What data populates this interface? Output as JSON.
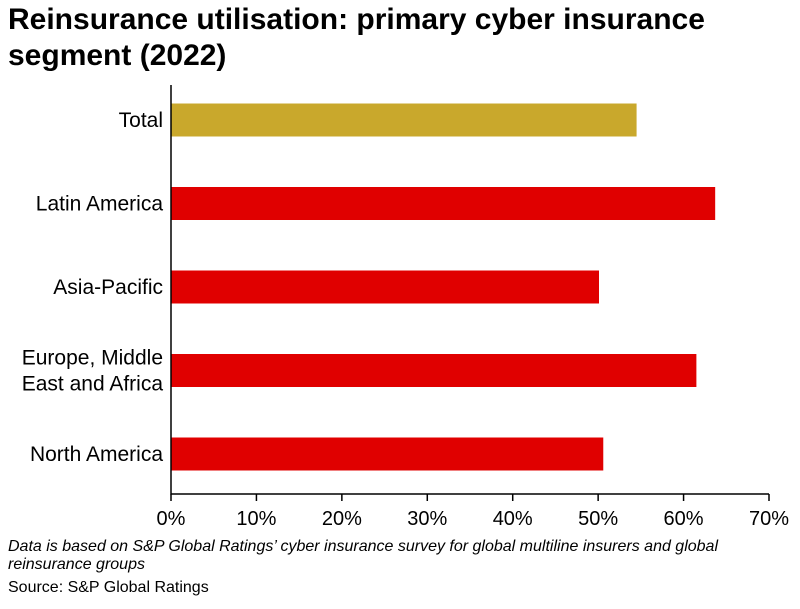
{
  "title": "Reinsurance utilisation: primary cyber insurance segment (2022)",
  "footnote": "Data is based on S&P Global Ratings’ cyber insurance survey for global multiline insurers and global reinsurance groups",
  "source": "Source: S&P Global Ratings",
  "colors": {
    "highlight": "#C9A82C",
    "default": "#E00000",
    "axis": "#000000"
  },
  "chart_data": {
    "type": "bar",
    "orientation": "horizontal",
    "title": "Reinsurance utilisation: primary cyber insurance segment (2022)",
    "categories": [
      [
        "Total"
      ],
      [
        "Latin America"
      ],
      [
        "Asia-Pacific"
      ],
      [
        "Europe, Middle",
        "East and Africa"
      ],
      [
        "North America"
      ]
    ],
    "values": [
      54.5,
      63.7,
      50.1,
      61.5,
      50.6
    ],
    "highlight_index": 0,
    "xlim": [
      0,
      70
    ],
    "xticks": [
      0,
      10,
      20,
      30,
      40,
      50,
      60,
      70
    ],
    "tick_format": "{v}%",
    "xlabel": "",
    "ylabel": "",
    "grid": false
  }
}
